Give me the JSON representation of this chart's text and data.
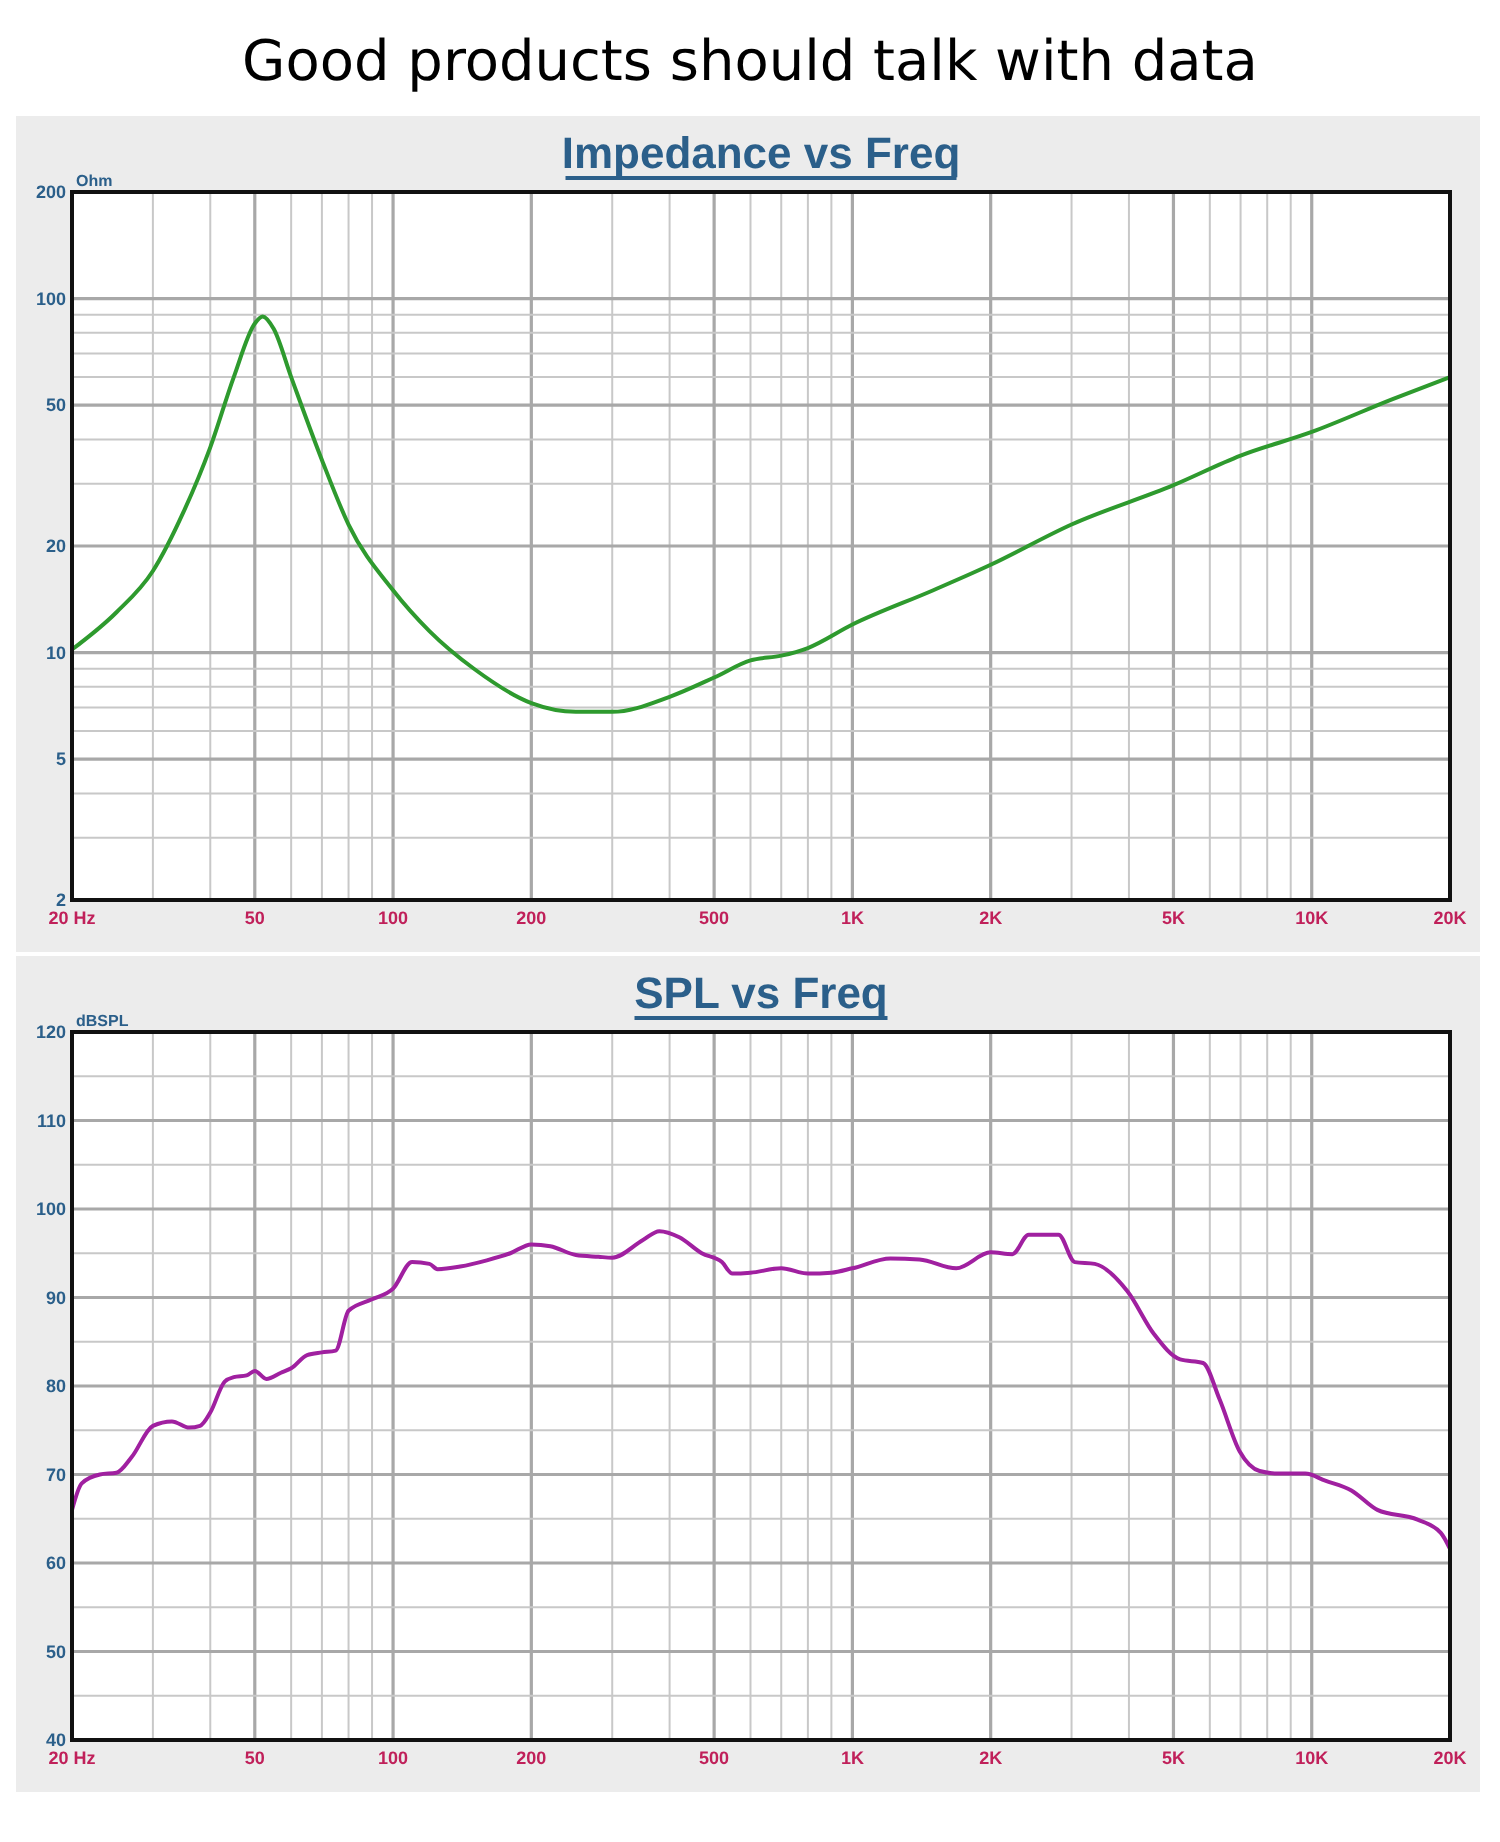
{
  "chart_data": [
    {
      "type": "line",
      "title": "Impedance vs Freq",
      "ylabel": "Ohm",
      "annotations": [
        "Good products should talk with data"
      ],
      "log": "xy",
      "grid": true,
      "xlim": [
        20,
        20000
      ],
      "ylim": [
        2,
        200
      ],
      "xticks": [
        {
          "value": 20,
          "label": "20 Hz"
        },
        {
          "value": 30,
          "label": null
        },
        {
          "value": 40,
          "label": null
        },
        50,
        {
          "value": 60,
          "label": null
        },
        {
          "value": 70,
          "label": null
        },
        {
          "value": 80,
          "label": null
        },
        {
          "value": 90,
          "label": null
        },
        100,
        200,
        {
          "value": 300,
          "label": null
        },
        {
          "value": 400,
          "label": null
        },
        500,
        {
          "value": 600,
          "label": null
        },
        {
          "value": 700,
          "label": null
        },
        {
          "value": 800,
          "label": null
        },
        {
          "value": 900,
          "label": null
        },
        {
          "value": 1000,
          "label": "1K"
        },
        {
          "value": 2000,
          "label": "2K"
        },
        {
          "value": 3000,
          "label": null
        },
        {
          "value": 4000,
          "label": null
        },
        {
          "value": 5000,
          "label": "5K"
        },
        {
          "value": 6000,
          "label": null
        },
        {
          "value": 7000,
          "label": null
        },
        {
          "value": 8000,
          "label": null
        },
        {
          "value": 9000,
          "label": null
        },
        {
          "value": 10000,
          "label": "10K"
        },
        {
          "value": 20000,
          "label": "20K"
        }
      ],
      "yticks": [
        2,
        {
          "value": 3,
          "label": null
        },
        {
          "value": 4,
          "label": null
        },
        5,
        {
          "value": 6,
          "label": null
        },
        {
          "value": 7,
          "label": null
        },
        {
          "value": 8,
          "label": null
        },
        {
          "value": 9,
          "label": null
        },
        10,
        20,
        {
          "value": 30,
          "label": null
        },
        {
          "value": 40,
          "label": null
        },
        50,
        {
          "value": 60,
          "label": null
        },
        {
          "value": 70,
          "label": null
        },
        {
          "value": 80,
          "label": null
        },
        {
          "value": 90,
          "label": null
        },
        100,
        200
      ],
      "series": [
        {
          "color": "#2e9a2e",
          "x": [
            20,
            25,
            30,
            35,
            40,
            45,
            50,
            52,
            55,
            60,
            70,
            80,
            100,
            120,
            150,
            200,
            250,
            300,
            400,
            500,
            600,
            700,
            800,
            1000,
            1500,
            2000,
            3000,
            5000,
            7000,
            10000,
            15000,
            20000
          ],
          "values": [
            10.2,
            13,
            17,
            25,
            38,
            60,
            85,
            89,
            82,
            60,
            35,
            23,
            15,
            11.5,
            9,
            7.2,
            6.8,
            6.8,
            7.5,
            8.5,
            9.5,
            9.8,
            10.3,
            12,
            15,
            17.7,
            23,
            29.7,
            36,
            42,
            52,
            60
          ]
        }
      ]
    },
    {
      "type": "line",
      "title": "SPL vs Freq",
      "ylabel": "dBSPL",
      "log": "x",
      "grid": true,
      "xlim": [
        20,
        20000
      ],
      "ylim": [
        40,
        120
      ],
      "xticks": [
        {
          "value": 20,
          "label": "20 Hz"
        },
        {
          "value": 30,
          "label": null
        },
        {
          "value": 40,
          "label": null
        },
        50,
        {
          "value": 60,
          "label": null
        },
        {
          "value": 70,
          "label": null
        },
        {
          "value": 80,
          "label": null
        },
        {
          "value": 90,
          "label": null
        },
        100,
        200,
        {
          "value": 300,
          "label": null
        },
        {
          "value": 400,
          "label": null
        },
        500,
        {
          "value": 600,
          "label": null
        },
        {
          "value": 700,
          "label": null
        },
        {
          "value": 800,
          "label": null
        },
        {
          "value": 900,
          "label": null
        },
        {
          "value": 1000,
          "label": "1K"
        },
        {
          "value": 2000,
          "label": "2K"
        },
        {
          "value": 3000,
          "label": null
        },
        {
          "value": 4000,
          "label": null
        },
        {
          "value": 5000,
          "label": "5K"
        },
        {
          "value": 6000,
          "label": null
        },
        {
          "value": 7000,
          "label": null
        },
        {
          "value": 8000,
          "label": null
        },
        {
          "value": 9000,
          "label": null
        },
        {
          "value": 10000,
          "label": "10K"
        },
        {
          "value": 20000,
          "label": "20K"
        }
      ],
      "yticks": [
        40,
        {
          "value": 45,
          "label": null
        },
        50,
        {
          "value": 55,
          "label": null
        },
        60,
        {
          "value": 65,
          "label": null
        },
        70,
        {
          "value": 75,
          "label": null
        },
        80,
        {
          "value": 85,
          "label": null
        },
        90,
        {
          "value": 95,
          "label": null
        },
        100,
        {
          "value": 105,
          "label": null
        },
        110,
        {
          "value": 115,
          "label": null
        },
        120
      ],
      "series": [
        {
          "color": "#a020a0",
          "x": [
            20,
            21,
            23,
            25,
            27,
            30,
            33,
            36,
            38,
            40,
            43,
            45,
            48,
            50,
            53,
            57,
            60,
            65,
            70,
            75,
            80,
            90,
            100,
            110,
            120,
            125,
            140,
            160,
            180,
            200,
            220,
            250,
            280,
            300,
            350,
            380,
            420,
            470,
            520,
            548,
            600,
            700,
            800,
            900,
            1000,
            1210,
            1400,
            1683,
            2000,
            2230,
            2420,
            2810,
            3050,
            3370,
            3970,
            4530,
            5170,
            5800,
            6300,
            6970,
            7700,
            8500,
            9680,
            10700,
            12200,
            13900,
            17000,
            19100,
            20000
          ],
          "values": [
            66,
            69,
            70,
            70.2,
            72,
            75.5,
            76,
            75.3,
            75.5,
            77,
            80.5,
            81,
            81.2,
            81.7,
            80.8,
            81.5,
            82,
            83.5,
            83.8,
            84,
            88.5,
            89.8,
            91,
            94,
            93.8,
            93.2,
            93.5,
            94.2,
            95,
            96,
            95.8,
            94.8,
            94.6,
            94.5,
            96.5,
            97.5,
            96.8,
            95,
            94,
            92.7,
            92.8,
            93.3,
            92.7,
            92.8,
            93.3,
            94.4,
            94.3,
            93.3,
            95.1,
            94.9,
            97.1,
            97.1,
            94,
            93.8,
            90.7,
            85.9,
            83,
            82.6,
            78.5,
            72.6,
            70.4,
            70.1,
            70.1,
            69.3,
            68.2,
            66,
            64.9,
            63.4,
            61.6
          ]
        }
      ]
    }
  ]
}
